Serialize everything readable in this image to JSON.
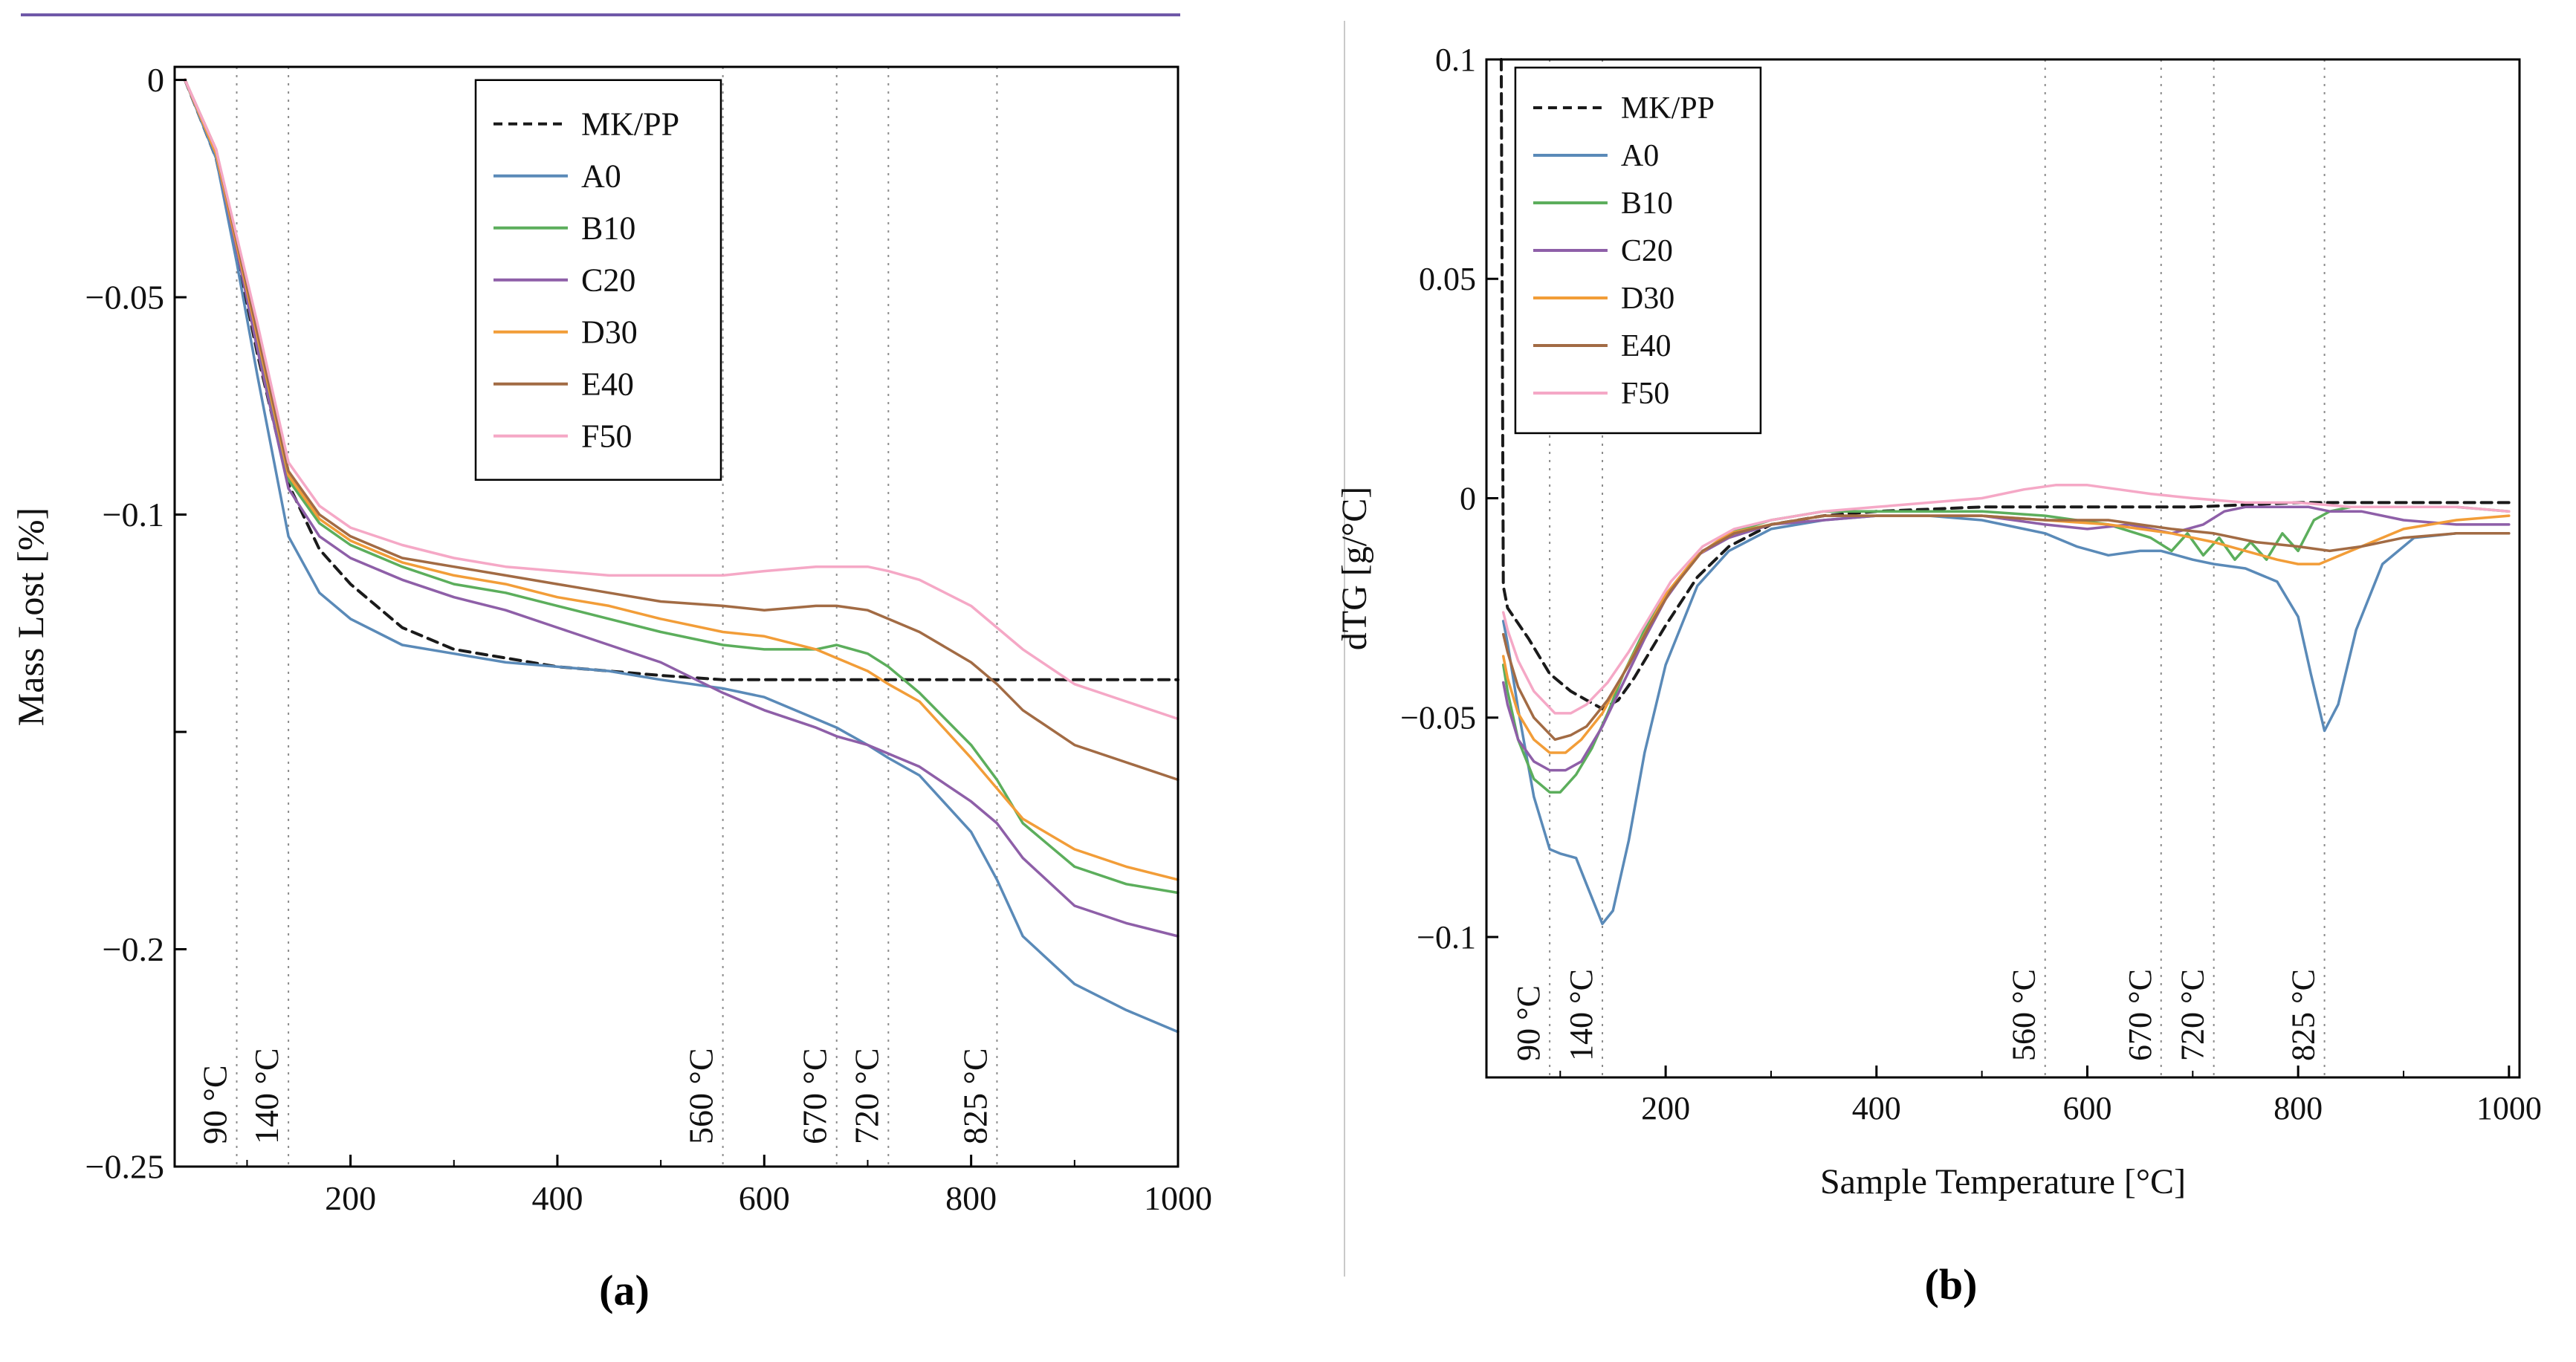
{
  "figure": {
    "caption_a": "(a)",
    "caption_b": "(b)"
  },
  "decorations": {
    "top_rule_color": "#6f58a8",
    "side_rule_color": "#c9c9c9"
  },
  "colors": {
    "grid": "#8c8c8c",
    "axis": "#000000",
    "text": "#111111",
    "legend_bg": "#ffffff"
  },
  "chart_data": [
    {
      "id": "a",
      "type": "line",
      "title": "",
      "xlabel": "",
      "ylabel": "Mass Lost [%]",
      "x_range": [
        30,
        1000
      ],
      "y_range": [
        -0.25,
        0.003
      ],
      "grid": "vertical-dotted-annotations-only",
      "legend_position": "top-center",
      "x_ticks": [
        {
          "v": 200,
          "label": "200"
        },
        {
          "v": 400,
          "label": "400"
        },
        {
          "v": 600,
          "label": "600"
        },
        {
          "v": 800,
          "label": "800"
        },
        {
          "v": 1000,
          "label": "1000"
        }
      ],
      "x_minor": [
        100,
        300,
        500,
        700,
        900
      ],
      "y_ticks": [
        {
          "v": 0,
          "label": "0"
        },
        {
          "v": -0.05,
          "label": "−0.05"
        },
        {
          "v": -0.1,
          "label": "−0.1"
        },
        {
          "v": -0.15,
          "label": ""
        },
        {
          "v": -0.2,
          "label": "−0.2"
        },
        {
          "v": -0.25,
          "label": "−0.25"
        }
      ],
      "vlines": [
        {
          "v": 90,
          "label": "90 °C"
        },
        {
          "v": 140,
          "label": "140 °C"
        },
        {
          "v": 560,
          "label": "560 °C"
        },
        {
          "v": 670,
          "label": "670 °C"
        },
        {
          "v": 720,
          "label": "720 °C"
        },
        {
          "v": 825,
          "label": "825 °C"
        }
      ],
      "x": [
        40,
        70,
        90,
        110,
        140,
        170,
        200,
        250,
        300,
        350,
        400,
        450,
        500,
        560,
        600,
        650,
        670,
        700,
        720,
        750,
        800,
        825,
        850,
        900,
        950,
        1000
      ],
      "series": [
        {
          "name": "MK/PP",
          "color": "#1a1a1a",
          "dash": "14 9",
          "values": [
            0,
            -0.018,
            -0.04,
            -0.063,
            -0.093,
            -0.108,
            -0.116,
            -0.126,
            -0.131,
            -0.133,
            -0.135,
            -0.136,
            -0.137,
            -0.138,
            -0.138,
            -0.138,
            -0.138,
            -0.138,
            -0.138,
            -0.138,
            -0.138,
            -0.138,
            -0.138,
            -0.138,
            -0.138,
            -0.138
          ]
        },
        {
          "name": "A0",
          "color": "#5a8ab8",
          "values": [
            0,
            -0.018,
            -0.042,
            -0.068,
            -0.105,
            -0.118,
            -0.124,
            -0.13,
            -0.132,
            -0.134,
            -0.135,
            -0.136,
            -0.138,
            -0.14,
            -0.142,
            -0.147,
            -0.149,
            -0.153,
            -0.156,
            -0.16,
            -0.173,
            -0.184,
            -0.197,
            -0.208,
            -0.214,
            -0.219
          ]
        },
        {
          "name": "B10",
          "color": "#5cae5c",
          "values": [
            0,
            -0.017,
            -0.038,
            -0.06,
            -0.092,
            -0.102,
            -0.107,
            -0.112,
            -0.116,
            -0.118,
            -0.121,
            -0.124,
            -0.127,
            -0.13,
            -0.131,
            -0.131,
            -0.13,
            -0.132,
            -0.135,
            -0.141,
            -0.153,
            -0.161,
            -0.171,
            -0.181,
            -0.185,
            -0.187
          ]
        },
        {
          "name": "C20",
          "color": "#8e5fa8",
          "values": [
            0,
            -0.017,
            -0.039,
            -0.062,
            -0.094,
            -0.105,
            -0.11,
            -0.115,
            -0.119,
            -0.122,
            -0.126,
            -0.13,
            -0.134,
            -0.141,
            -0.145,
            -0.149,
            -0.151,
            -0.153,
            -0.155,
            -0.158,
            -0.166,
            -0.171,
            -0.179,
            -0.19,
            -0.194,
            -0.197
          ]
        },
        {
          "name": "D30",
          "color": "#f29d38",
          "values": [
            0,
            -0.017,
            -0.038,
            -0.059,
            -0.091,
            -0.101,
            -0.106,
            -0.111,
            -0.114,
            -0.116,
            -0.119,
            -0.121,
            -0.124,
            -0.127,
            -0.128,
            -0.131,
            -0.133,
            -0.136,
            -0.139,
            -0.143,
            -0.156,
            -0.163,
            -0.17,
            -0.177,
            -0.181,
            -0.184
          ]
        },
        {
          "name": "E40",
          "color": "#a26b44",
          "values": [
            0,
            -0.016,
            -0.037,
            -0.058,
            -0.09,
            -0.1,
            -0.105,
            -0.11,
            -0.112,
            -0.114,
            -0.116,
            -0.118,
            -0.12,
            -0.121,
            -0.122,
            -0.121,
            -0.121,
            -0.122,
            -0.124,
            -0.127,
            -0.134,
            -0.139,
            -0.145,
            -0.153,
            -0.157,
            -0.161
          ]
        },
        {
          "name": "F50",
          "color": "#f5a8c6",
          "values": [
            0,
            -0.016,
            -0.036,
            -0.056,
            -0.088,
            -0.098,
            -0.103,
            -0.107,
            -0.11,
            -0.112,
            -0.113,
            -0.114,
            -0.114,
            -0.114,
            -0.113,
            -0.112,
            -0.112,
            -0.112,
            -0.113,
            -0.115,
            -0.121,
            -0.126,
            -0.131,
            -0.139,
            -0.143,
            -0.147
          ]
        }
      ]
    },
    {
      "id": "b",
      "type": "line",
      "title": "",
      "xlabel": "Sample Temperature [°C]",
      "ylabel": "dTG [g/°C]",
      "x_range": [
        30,
        1010
      ],
      "y_range": [
        -0.132,
        0.1
      ],
      "grid": "vertical-dotted-annotations-only",
      "legend_position": "top-left",
      "x_ticks": [
        {
          "v": 200,
          "label": "200"
        },
        {
          "v": 400,
          "label": "400"
        },
        {
          "v": 600,
          "label": "600"
        },
        {
          "v": 800,
          "label": "800"
        },
        {
          "v": 1000,
          "label": "1000"
        }
      ],
      "x_minor": [
        100,
        300,
        500,
        700,
        900
      ],
      "y_ticks": [
        {
          "v": 0.1,
          "label": "0.1"
        },
        {
          "v": 0.05,
          "label": "0.05"
        },
        {
          "v": 0,
          "label": "0"
        },
        {
          "v": -0.05,
          "label": "−0.05"
        },
        {
          "v": -0.1,
          "label": "−0.1"
        }
      ],
      "vlines": [
        {
          "v": 90,
          "label": "90 °C"
        },
        {
          "v": 140,
          "label": "140 °C"
        },
        {
          "v": 560,
          "label": "560 °C"
        },
        {
          "v": 670,
          "label": "670 °C"
        },
        {
          "v": 720,
          "label": "720 °C"
        },
        {
          "v": 825,
          "label": "825 °C"
        }
      ],
      "series": [
        {
          "name": "MK/PP",
          "color": "#1a1a1a",
          "dash": "14 9",
          "x": [
            44,
            46,
            50,
            70,
            90,
            110,
            125,
            140,
            155,
            170,
            200,
            230,
            260,
            300,
            350,
            400,
            500,
            600,
            700,
            800,
            900,
            1000
          ],
          "y": [
            0.1,
            -0.02,
            -0.025,
            -0.032,
            -0.04,
            -0.044,
            -0.046,
            -0.048,
            -0.046,
            -0.041,
            -0.029,
            -0.018,
            -0.011,
            -0.006,
            -0.004,
            -0.003,
            -0.002,
            -0.002,
            -0.002,
            -0.001,
            -0.001,
            -0.001
          ]
        },
        {
          "name": "A0",
          "color": "#5a8ab8",
          "x": [
            46,
            50,
            60,
            75,
            90,
            100,
            115,
            125,
            140,
            150,
            165,
            180,
            200,
            230,
            260,
            300,
            350,
            400,
            450,
            500,
            540,
            560,
            590,
            620,
            650,
            670,
            700,
            720,
            750,
            780,
            800,
            812,
            825,
            838,
            855,
            880,
            910,
            950,
            1000
          ],
          "y": [
            -0.028,
            -0.033,
            -0.048,
            -0.068,
            -0.08,
            -0.081,
            -0.082,
            -0.088,
            -0.097,
            -0.094,
            -0.078,
            -0.058,
            -0.038,
            -0.02,
            -0.012,
            -0.007,
            -0.005,
            -0.004,
            -0.004,
            -0.005,
            -0.007,
            -0.008,
            -0.011,
            -0.013,
            -0.012,
            -0.012,
            -0.014,
            -0.015,
            -0.016,
            -0.019,
            -0.027,
            -0.04,
            -0.053,
            -0.047,
            -0.03,
            -0.015,
            -0.009,
            -0.008,
            -0.008
          ]
        },
        {
          "name": "B10",
          "color": "#5cae5c",
          "x": [
            46,
            50,
            60,
            75,
            90,
            100,
            115,
            130,
            145,
            160,
            180,
            200,
            230,
            260,
            300,
            350,
            400,
            500,
            560,
            620,
            660,
            680,
            695,
            710,
            725,
            740,
            755,
            770,
            785,
            800,
            815,
            830,
            850,
            900,
            950,
            1000
          ],
          "y": [
            -0.038,
            -0.044,
            -0.055,
            -0.064,
            -0.067,
            -0.067,
            -0.063,
            -0.057,
            -0.049,
            -0.04,
            -0.03,
            -0.022,
            -0.013,
            -0.008,
            -0.005,
            -0.003,
            -0.003,
            -0.003,
            -0.004,
            -0.006,
            -0.009,
            -0.012,
            -0.008,
            -0.013,
            -0.009,
            -0.014,
            -0.01,
            -0.014,
            -0.008,
            -0.012,
            -0.005,
            -0.003,
            -0.002,
            -0.002,
            -0.002,
            -0.003
          ]
        },
        {
          "name": "C20",
          "color": "#8e5fa8",
          "x": [
            46,
            50,
            60,
            75,
            90,
            105,
            120,
            140,
            160,
            180,
            200,
            230,
            260,
            300,
            350,
            400,
            500,
            560,
            600,
            640,
            680,
            710,
            730,
            750,
            770,
            790,
            810,
            830,
            860,
            900,
            950,
            1000
          ],
          "y": [
            -0.042,
            -0.047,
            -0.055,
            -0.06,
            -0.062,
            -0.062,
            -0.06,
            -0.052,
            -0.042,
            -0.032,
            -0.023,
            -0.013,
            -0.009,
            -0.006,
            -0.005,
            -0.004,
            -0.004,
            -0.006,
            -0.007,
            -0.006,
            -0.008,
            -0.006,
            -0.003,
            -0.002,
            -0.002,
            -0.002,
            -0.002,
            -0.003,
            -0.003,
            -0.005,
            -0.006,
            -0.006
          ]
        },
        {
          "name": "D30",
          "color": "#f29d38",
          "x": [
            46,
            50,
            60,
            75,
            90,
            105,
            120,
            140,
            160,
            180,
            200,
            230,
            260,
            300,
            350,
            400,
            500,
            560,
            620,
            680,
            720,
            750,
            780,
            800,
            820,
            840,
            860,
            900,
            950,
            1000
          ],
          "y": [
            -0.036,
            -0.041,
            -0.049,
            -0.055,
            -0.058,
            -0.058,
            -0.055,
            -0.049,
            -0.04,
            -0.031,
            -0.022,
            -0.013,
            -0.008,
            -0.006,
            -0.004,
            -0.004,
            -0.004,
            -0.005,
            -0.006,
            -0.008,
            -0.01,
            -0.012,
            -0.014,
            -0.015,
            -0.015,
            -0.013,
            -0.011,
            -0.007,
            -0.005,
            -0.004
          ]
        },
        {
          "name": "E40",
          "color": "#a26b44",
          "x": [
            46,
            50,
            60,
            75,
            95,
            110,
            125,
            145,
            165,
            185,
            205,
            235,
            265,
            300,
            350,
            400,
            500,
            560,
            620,
            680,
            720,
            760,
            800,
            830,
            860,
            900,
            950,
            1000
          ],
          "y": [
            -0.031,
            -0.035,
            -0.043,
            -0.05,
            -0.055,
            -0.054,
            -0.052,
            -0.046,
            -0.038,
            -0.029,
            -0.021,
            -0.012,
            -0.008,
            -0.006,
            -0.004,
            -0.004,
            -0.004,
            -0.005,
            -0.005,
            -0.007,
            -0.008,
            -0.01,
            -0.011,
            -0.012,
            -0.011,
            -0.009,
            -0.008,
            -0.008
          ]
        },
        {
          "name": "F50",
          "color": "#f5a8c6",
          "x": [
            46,
            50,
            60,
            75,
            95,
            110,
            125,
            145,
            165,
            185,
            205,
            235,
            265,
            300,
            350,
            400,
            450,
            500,
            540,
            570,
            600,
            630,
            660,
            700,
            750,
            800,
            850,
            900,
            950,
            1000
          ],
          "y": [
            -0.026,
            -0.03,
            -0.037,
            -0.044,
            -0.049,
            -0.049,
            -0.047,
            -0.042,
            -0.035,
            -0.027,
            -0.019,
            -0.011,
            -0.007,
            -0.005,
            -0.003,
            -0.002,
            -0.001,
            0.0,
            0.002,
            0.003,
            0.003,
            0.002,
            0.001,
            0.0,
            -0.001,
            -0.001,
            -0.002,
            -0.002,
            -0.002,
            -0.003
          ]
        }
      ]
    }
  ]
}
